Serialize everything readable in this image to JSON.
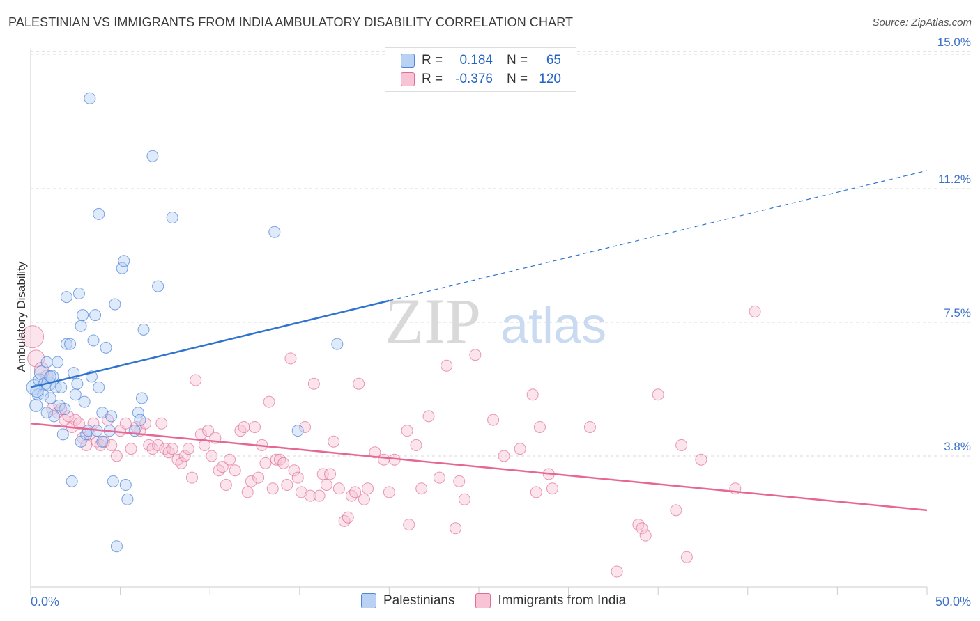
{
  "title": "PALESTINIAN VS IMMIGRANTS FROM INDIA AMBULATORY DISABILITY CORRELATION CHART",
  "source": "Source: ZipAtlas.com",
  "watermark": {
    "zip": "ZIP",
    "atlas": "atlas"
  },
  "colors": {
    "blue": "#4f86d9",
    "blue_fill": "#b9d1f3",
    "blue_line": "#2f74cf",
    "pink": "#e06d99",
    "pink_fill": "#f7c3d5",
    "pink_line": "#e66794",
    "grid": "#d8d8d8",
    "axis_label": "#3c72c8"
  },
  "legend": {
    "rows": [
      {
        "r_label": "R =",
        "r_value": "0.184",
        "n_label": "N =",
        "n_value": "65"
      },
      {
        "r_label": "R =",
        "r_value": "-0.376",
        "n_label": "N =",
        "n_value": "120"
      }
    ]
  },
  "bottom_legend": [
    "Palestinians",
    "Immigrants from India"
  ],
  "chart_data": {
    "type": "scatter",
    "title": "PALESTINIAN VS IMMIGRANTS FROM INDIA AMBULATORY DISABILITY CORRELATION CHART",
    "xlabel": "",
    "ylabel": "Ambulatory Disability",
    "xlim": [
      0,
      50
    ],
    "ylim": [
      0,
      15.5
    ],
    "x_tick_labels": [
      "0.0%",
      "50.0%"
    ],
    "y_ticks": [
      3.8,
      7.5,
      11.2,
      15.0
    ],
    "y_tick_labels": [
      "3.8%",
      "7.5%",
      "11.2%",
      "15.0%"
    ],
    "grid": true,
    "series": [
      {
        "name": "Palestinians",
        "r": 0.184,
        "n": 65,
        "trend": {
          "x0": 0,
          "y0": 5.7,
          "x1": 20,
          "y1": 8.1,
          "solid_to": 20,
          "dashed_to": 50,
          "y_end": 11.7
        },
        "points": [
          [
            0.2,
            5.7,
            11
          ],
          [
            0.3,
            5.2,
            9
          ],
          [
            0.4,
            5.5,
            8
          ],
          [
            0.5,
            5.9,
            9
          ],
          [
            0.6,
            6.1,
            10
          ],
          [
            0.7,
            5.5,
            8
          ],
          [
            0.8,
            5.8,
            9
          ],
          [
            0.9,
            6.4,
            8
          ],
          [
            1.0,
            5.8,
            10
          ],
          [
            1.1,
            5.4,
            8
          ],
          [
            1.2,
            6.0,
            9
          ],
          [
            1.3,
            4.9,
            8
          ],
          [
            1.4,
            5.7,
            8
          ],
          [
            1.5,
            6.4,
            8
          ],
          [
            1.6,
            5.2,
            8
          ],
          [
            1.7,
            5.7,
            8
          ],
          [
            1.8,
            4.4,
            8
          ],
          [
            1.9,
            5.1,
            8
          ],
          [
            2.0,
            6.9,
            8
          ],
          [
            2.0,
            8.2,
            8
          ],
          [
            2.2,
            6.9,
            8
          ],
          [
            2.3,
            3.1,
            8
          ],
          [
            2.4,
            6.1,
            8
          ],
          [
            2.5,
            5.5,
            8
          ],
          [
            2.6,
            5.8,
            8
          ],
          [
            2.7,
            8.3,
            8
          ],
          [
            2.8,
            7.4,
            8
          ],
          [
            2.8,
            4.2,
            8
          ],
          [
            2.9,
            7.7,
            8
          ],
          [
            3.0,
            5.3,
            8
          ],
          [
            3.1,
            4.4,
            8
          ],
          [
            3.2,
            4.5,
            8
          ],
          [
            3.4,
            6.0,
            8
          ],
          [
            3.5,
            7.0,
            8
          ],
          [
            3.6,
            7.7,
            8
          ],
          [
            3.7,
            4.5,
            8
          ],
          [
            3.8,
            5.7,
            8
          ],
          [
            3.8,
            10.5,
            8
          ],
          [
            3.3,
            13.7,
            8
          ],
          [
            4.0,
            4.2,
            8
          ],
          [
            4.0,
            5.0,
            8
          ],
          [
            4.2,
            6.8,
            8
          ],
          [
            4.4,
            4.5,
            8
          ],
          [
            4.5,
            4.9,
            8
          ],
          [
            4.6,
            3.1,
            8
          ],
          [
            4.7,
            8.0,
            8
          ],
          [
            4.8,
            1.3,
            8
          ],
          [
            5.1,
            9.0,
            8
          ],
          [
            5.2,
            9.2,
            8
          ],
          [
            5.3,
            3.0,
            8
          ],
          [
            5.4,
            2.6,
            8
          ],
          [
            5.8,
            4.5,
            8
          ],
          [
            6.0,
            5.0,
            8
          ],
          [
            6.1,
            4.8,
            8
          ],
          [
            6.2,
            5.4,
            8
          ],
          [
            6.3,
            7.3,
            8
          ],
          [
            6.8,
            12.1,
            8
          ],
          [
            7.1,
            8.5,
            8
          ],
          [
            7.9,
            10.4,
            8
          ],
          [
            13.6,
            10.0,
            8
          ],
          [
            17.1,
            6.9,
            8
          ],
          [
            14.9,
            4.5,
            8
          ],
          [
            0.35,
            5.6,
            9
          ],
          [
            0.9,
            5.0,
            8
          ],
          [
            1.1,
            6.0,
            8
          ]
        ]
      },
      {
        "name": "Immigrants from India",
        "r": -0.376,
        "n": 120,
        "trend": {
          "x0": 0,
          "y0": 4.7,
          "x1": 50,
          "y1": 2.3
        },
        "points": [
          [
            0.1,
            7.1,
            16
          ],
          [
            0.3,
            6.5,
            12
          ],
          [
            0.6,
            6.2,
            10
          ],
          [
            0.9,
            6.0,
            9
          ],
          [
            1.2,
            5.1,
            8
          ],
          [
            1.5,
            5.0,
            8
          ],
          [
            1.7,
            5.1,
            8
          ],
          [
            1.9,
            4.8,
            8
          ],
          [
            2.1,
            4.9,
            8
          ],
          [
            2.3,
            4.6,
            8
          ],
          [
            2.5,
            4.8,
            8
          ],
          [
            2.7,
            4.7,
            8
          ],
          [
            2.9,
            4.3,
            8
          ],
          [
            3.1,
            4.1,
            8
          ],
          [
            3.3,
            4.4,
            8
          ],
          [
            3.5,
            4.7,
            8
          ],
          [
            3.7,
            4.2,
            8
          ],
          [
            3.9,
            4.1,
            8
          ],
          [
            4.1,
            4.2,
            8
          ],
          [
            4.3,
            4.8,
            8
          ],
          [
            4.5,
            4.1,
            8
          ],
          [
            4.8,
            3.8,
            8
          ],
          [
            5.0,
            4.5,
            8
          ],
          [
            5.3,
            4.7,
            8
          ],
          [
            5.6,
            4.0,
            8
          ],
          [
            5.9,
            4.6,
            8
          ],
          [
            6.1,
            4.5,
            8
          ],
          [
            6.4,
            4.7,
            8
          ],
          [
            6.6,
            4.1,
            8
          ],
          [
            6.8,
            4.0,
            8
          ],
          [
            7.1,
            4.1,
            8
          ],
          [
            7.3,
            4.7,
            8
          ],
          [
            7.5,
            4.0,
            8
          ],
          [
            7.7,
            3.9,
            8
          ],
          [
            7.9,
            4.0,
            8
          ],
          [
            8.2,
            3.7,
            8
          ],
          [
            8.4,
            3.6,
            8
          ],
          [
            8.6,
            3.8,
            8
          ],
          [
            8.8,
            4.0,
            8
          ],
          [
            9.0,
            3.2,
            8
          ],
          [
            9.2,
            5.9,
            8
          ],
          [
            9.5,
            4.4,
            8
          ],
          [
            9.7,
            4.1,
            8
          ],
          [
            9.9,
            4.5,
            8
          ],
          [
            10.1,
            3.8,
            8
          ],
          [
            10.3,
            4.3,
            8
          ],
          [
            10.5,
            3.4,
            8
          ],
          [
            10.7,
            3.5,
            8
          ],
          [
            10.9,
            3.0,
            8
          ],
          [
            11.1,
            3.7,
            8
          ],
          [
            11.4,
            3.4,
            8
          ],
          [
            11.7,
            4.5,
            8
          ],
          [
            11.9,
            4.6,
            8
          ],
          [
            12.1,
            2.8,
            8
          ],
          [
            12.3,
            3.1,
            8
          ],
          [
            12.5,
            4.6,
            8
          ],
          [
            12.7,
            3.2,
            8
          ],
          [
            12.9,
            4.1,
            8
          ],
          [
            13.1,
            3.6,
            8
          ],
          [
            13.3,
            5.3,
            8
          ],
          [
            13.5,
            2.9,
            8
          ],
          [
            13.7,
            3.7,
            8
          ],
          [
            13.9,
            3.7,
            8
          ],
          [
            14.1,
            3.6,
            8
          ],
          [
            14.3,
            3.0,
            8
          ],
          [
            14.5,
            6.5,
            8
          ],
          [
            14.7,
            3.4,
            8
          ],
          [
            14.9,
            3.2,
            8
          ],
          [
            15.1,
            2.8,
            8
          ],
          [
            15.3,
            4.6,
            8
          ],
          [
            15.6,
            2.7,
            8
          ],
          [
            15.8,
            5.8,
            8
          ],
          [
            16.1,
            2.7,
            8
          ],
          [
            16.3,
            3.3,
            8
          ],
          [
            16.5,
            3.0,
            8
          ],
          [
            16.7,
            3.3,
            8
          ],
          [
            16.9,
            4.2,
            8
          ],
          [
            17.2,
            2.9,
            8
          ],
          [
            17.5,
            2.0,
            8
          ],
          [
            17.7,
            2.1,
            8
          ],
          [
            17.9,
            2.7,
            8
          ],
          [
            18.1,
            2.8,
            8
          ],
          [
            18.3,
            5.8,
            8
          ],
          [
            18.6,
            2.6,
            8
          ],
          [
            18.8,
            2.9,
            8
          ],
          [
            19.2,
            3.9,
            8
          ],
          [
            19.7,
            3.7,
            8
          ],
          [
            20.0,
            2.8,
            8
          ],
          [
            20.3,
            3.7,
            8
          ],
          [
            21.0,
            4.5,
            8
          ],
          [
            21.1,
            1.9,
            8
          ],
          [
            21.8,
            2.9,
            8
          ],
          [
            22.2,
            4.9,
            8
          ],
          [
            22.8,
            3.2,
            8
          ],
          [
            23.2,
            6.3,
            8
          ],
          [
            23.7,
            1.8,
            8
          ],
          [
            23.9,
            3.1,
            8
          ],
          [
            24.2,
            2.6,
            8
          ],
          [
            24.8,
            6.6,
            8
          ],
          [
            25.8,
            4.8,
            8
          ],
          [
            27.3,
            4.0,
            8
          ],
          [
            28.0,
            5.5,
            8
          ],
          [
            28.2,
            2.8,
            8
          ],
          [
            28.4,
            4.6,
            8
          ],
          [
            28.9,
            3.3,
            8
          ],
          [
            29.1,
            2.9,
            8
          ],
          [
            31.2,
            4.6,
            8
          ],
          [
            32.7,
            0.6,
            8
          ],
          [
            33.9,
            1.9,
            8
          ],
          [
            34.1,
            1.8,
            8
          ],
          [
            34.3,
            1.6,
            8
          ],
          [
            35.0,
            5.5,
            8
          ],
          [
            36.0,
            2.3,
            8
          ],
          [
            36.3,
            4.1,
            8
          ],
          [
            36.6,
            1.0,
            8
          ],
          [
            37.4,
            3.7,
            8
          ],
          [
            39.3,
            2.9,
            8
          ],
          [
            40.4,
            7.8,
            8
          ],
          [
            21.5,
            4.1,
            8
          ],
          [
            26.4,
            3.8,
            8
          ]
        ]
      }
    ]
  }
}
